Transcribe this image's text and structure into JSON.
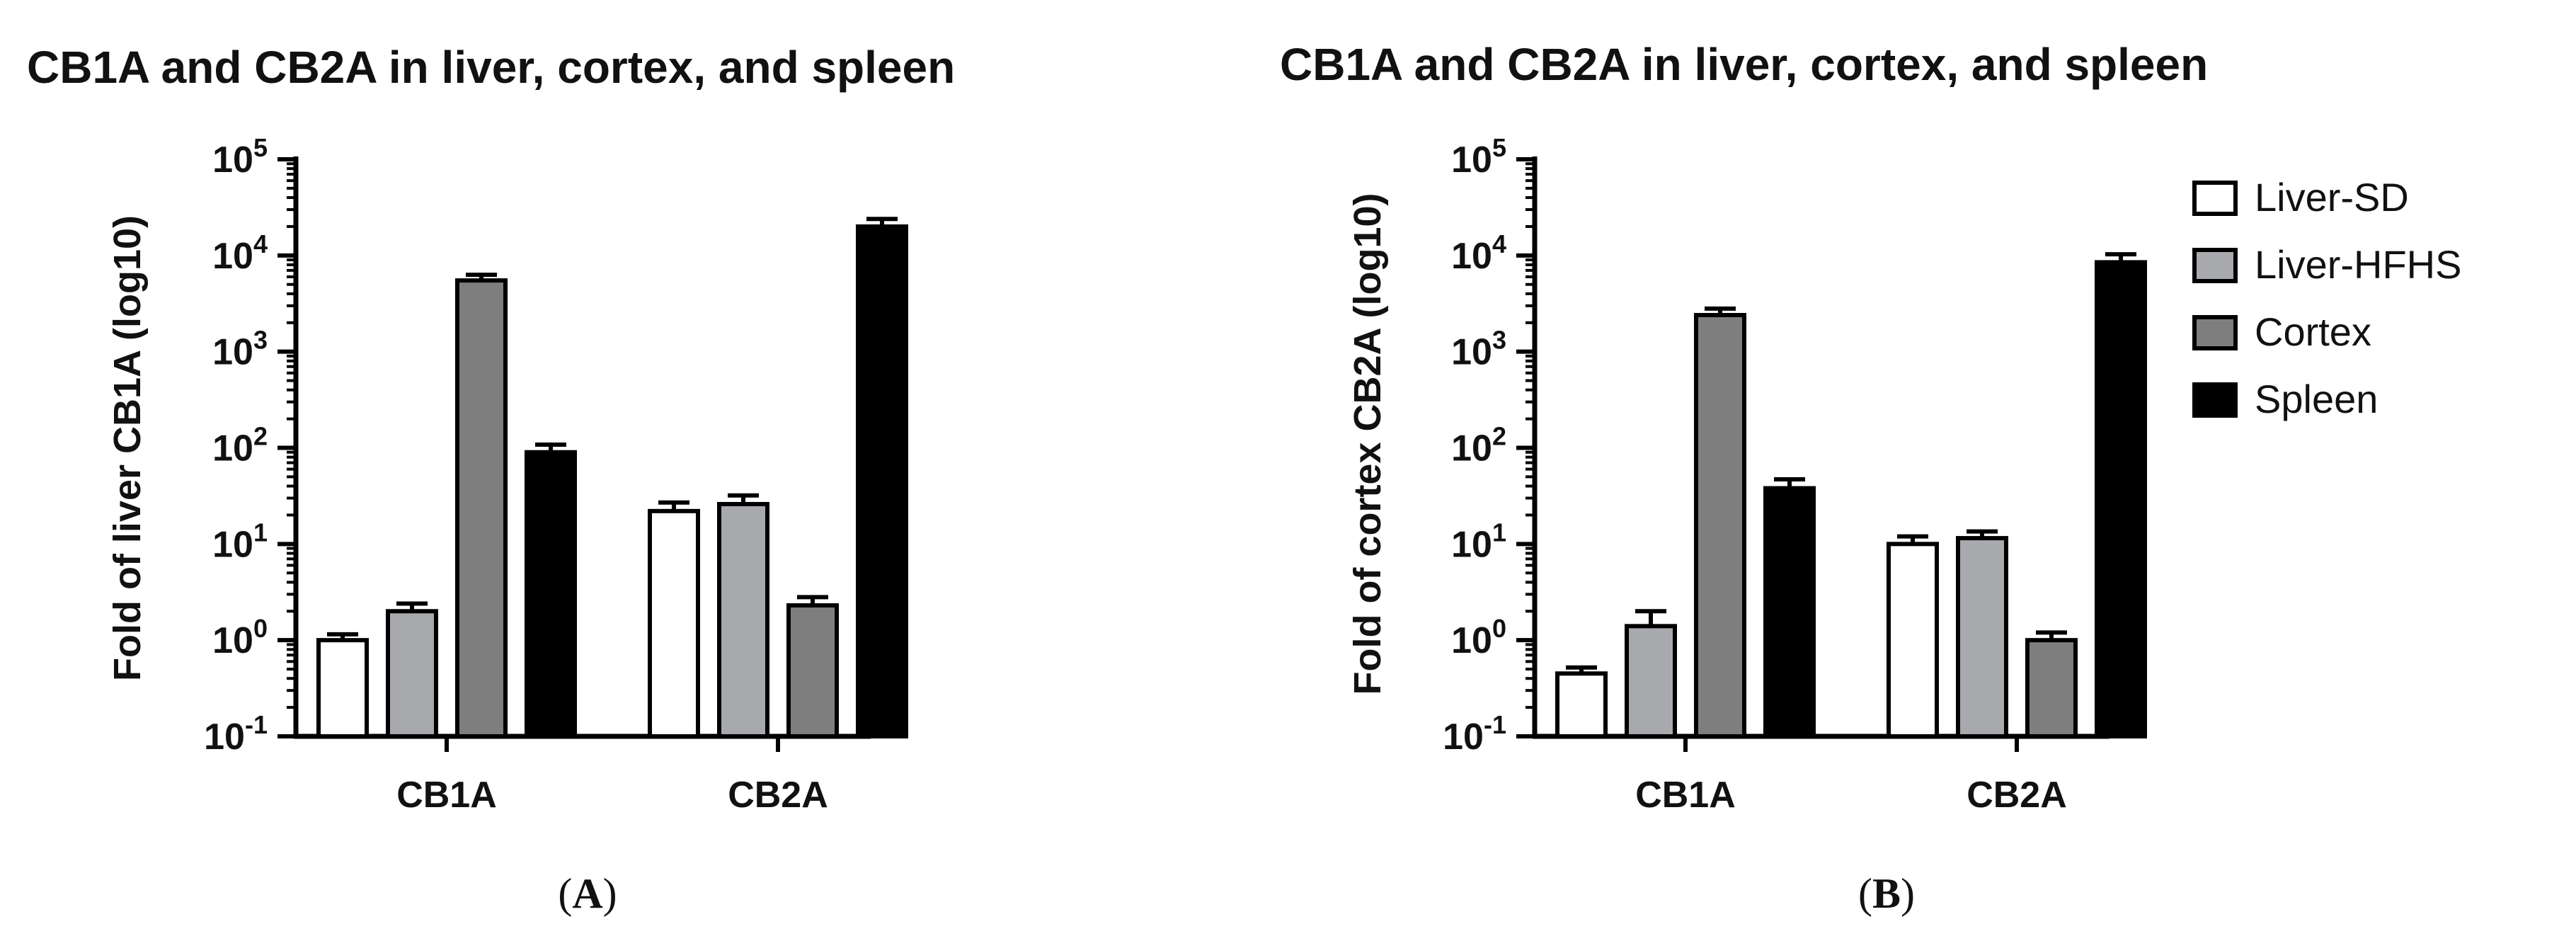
{
  "chart_data": [
    {
      "type": "bar",
      "title": "CB1A and CB2A in liver, cortex, and spleen",
      "ylabel": "Fold of liver CB1A (log10)",
      "yscale": "log10",
      "ylim": [
        0.1,
        100000
      ],
      "ytick_bases": [
        "10",
        "10",
        "10",
        "10",
        "10",
        "10",
        "10"
      ],
      "ytick_exponents": [
        "-1",
        "0",
        "1",
        "2",
        "3",
        "4",
        "5"
      ],
      "categories": [
        "CB1A",
        "CB2A"
      ],
      "series": [
        {
          "name": "Liver-SD",
          "values": [
            1.0,
            22
          ],
          "error": [
            0.15,
            5
          ]
        },
        {
          "name": "Liver-HFHS",
          "values": [
            2.0,
            26
          ],
          "error": [
            0.4,
            6
          ]
        },
        {
          "name": "Cortex",
          "values": [
            5500,
            2.3
          ],
          "error": [
            800,
            0.5
          ]
        },
        {
          "name": "Spleen",
          "values": [
            90,
            20000
          ],
          "error": [
            18,
            4000
          ]
        }
      ],
      "panel_label": "A"
    },
    {
      "type": "bar",
      "title": "CB1A and CB2A in liver, cortex, and spleen",
      "ylabel": "Fold of cortex CB2A (log10)",
      "yscale": "log10",
      "ylim": [
        0.1,
        100000
      ],
      "ytick_bases": [
        "10",
        "10",
        "10",
        "10",
        "10",
        "10",
        "10"
      ],
      "ytick_exponents": [
        "-1",
        "0",
        "1",
        "2",
        "3",
        "4",
        "5"
      ],
      "categories": [
        "CB1A",
        "CB2A"
      ],
      "series": [
        {
          "name": "Liver-SD",
          "values": [
            0.45,
            10
          ],
          "error": [
            0.07,
            2
          ]
        },
        {
          "name": "Liver-HFHS",
          "values": [
            1.4,
            11.5
          ],
          "error": [
            0.6,
            2
          ]
        },
        {
          "name": "Cortex",
          "values": [
            2400,
            1.0
          ],
          "error": [
            400,
            0.2
          ]
        },
        {
          "name": "Spleen",
          "values": [
            38,
            8500
          ],
          "error": [
            9,
            1800
          ]
        }
      ],
      "panel_label": "B"
    }
  ],
  "legend": {
    "items": [
      "Liver-SD",
      "Liver-HFHS",
      "Cortex",
      "Spleen"
    ],
    "colors": [
      "#ffffff",
      "#a8a9ac",
      "#7e7e7e",
      "#000000"
    ]
  },
  "colors": {
    "axis": "#000000",
    "text": "#111111",
    "bar_fills": [
      "#ffffff",
      "#a8a9ac",
      "#7e7e7e",
      "#000000"
    ]
  }
}
